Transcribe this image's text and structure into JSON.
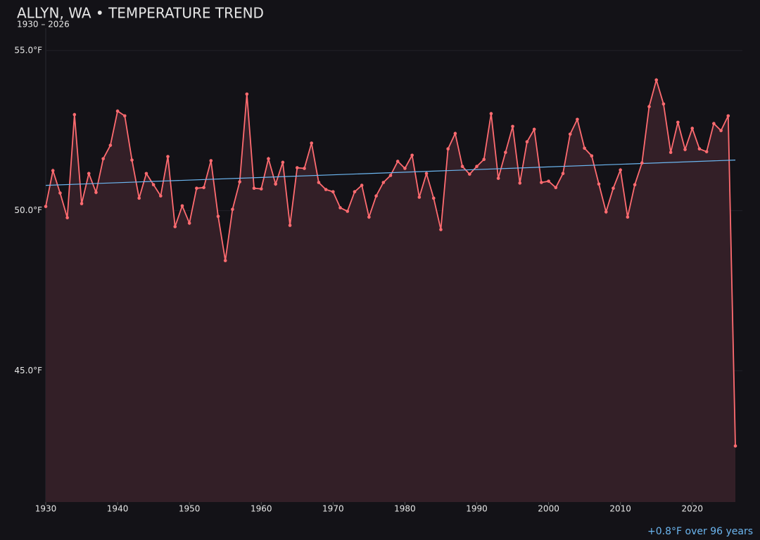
{
  "chart_data": {
    "type": "line",
    "title": "ALLYN, WA • TEMPERATURE TREND",
    "subtitle": "1930 – 2026",
    "annotation": "+0.8°F over 96 years",
    "x": [
      1930,
      1931,
      1932,
      1933,
      1934,
      1935,
      1936,
      1937,
      1938,
      1939,
      1940,
      1941,
      1942,
      1943,
      1944,
      1945,
      1946,
      1947,
      1948,
      1949,
      1950,
      1951,
      1952,
      1953,
      1954,
      1955,
      1956,
      1957,
      1958,
      1959,
      1960,
      1961,
      1962,
      1963,
      1964,
      1965,
      1966,
      1967,
      1968,
      1969,
      1970,
      1971,
      1972,
      1973,
      1974,
      1975,
      1976,
      1977,
      1978,
      1979,
      1980,
      1981,
      1982,
      1983,
      1984,
      1985,
      1986,
      1987,
      1988,
      1989,
      1990,
      1991,
      1992,
      1993,
      1994,
      1995,
      1996,
      1997,
      1998,
      1999,
      2000,
      2001,
      2002,
      2003,
      2004,
      2005,
      2006,
      2007,
      2008,
      2009,
      2010,
      2011,
      2012,
      2013,
      2014,
      2015,
      2016,
      2017,
      2018,
      2019,
      2020,
      2021,
      2022,
      2023,
      2024,
      2025,
      2026
    ],
    "values": [
      50.13,
      51.25,
      50.55,
      49.78,
      53.0,
      50.22,
      51.16,
      50.57,
      51.62,
      52.04,
      53.11,
      52.96,
      51.58,
      50.39,
      51.16,
      50.81,
      50.46,
      51.69,
      49.5,
      50.15,
      49.61,
      50.7,
      50.72,
      51.56,
      49.82,
      48.44,
      50.04,
      50.9,
      53.64,
      50.7,
      50.68,
      51.62,
      50.83,
      51.51,
      49.54,
      51.34,
      51.32,
      52.11,
      50.88,
      50.66,
      50.59,
      50.09,
      49.98,
      50.59,
      50.79,
      49.8,
      50.46,
      50.88,
      51.1,
      51.54,
      51.32,
      51.73,
      50.42,
      51.16,
      50.39,
      49.41,
      51.93,
      52.41,
      51.38,
      51.14,
      51.38,
      51.6,
      53.03,
      51.01,
      51.82,
      52.63,
      50.86,
      52.15,
      52.54,
      50.88,
      50.92,
      50.72,
      51.16,
      52.39,
      52.85,
      51.95,
      51.71,
      50.83,
      49.96,
      50.7,
      51.27,
      49.8,
      50.81,
      51.49,
      53.25,
      54.08,
      53.33,
      51.82,
      52.76,
      51.91,
      52.57,
      51.93,
      51.84,
      52.72,
      52.5,
      52.96,
      42.65
    ],
    "color": "#ff6b70",
    "trend": {
      "x": [
        1930,
        2026
      ],
      "values": [
        50.79,
        51.58
      ],
      "color": "#6cb6f0"
    },
    "xlim": [
      1930,
      2026
    ],
    "ylim": [
      40.9,
      55.7
    ],
    "xticks": [
      1930,
      1940,
      1950,
      1960,
      1970,
      1980,
      1990,
      2000,
      2010,
      2020
    ],
    "yticks": [
      {
        "value": 45,
        "label": "45.0°F"
      },
      {
        "value": 50,
        "label": "50.0°F"
      },
      {
        "value": 55,
        "label": "55.0°F"
      }
    ],
    "grid": true
  }
}
